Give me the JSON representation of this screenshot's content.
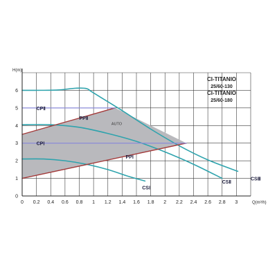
{
  "chart_data": {
    "type": "line",
    "title": "",
    "model_names": [
      "CI-TITANIO 25/60-130",
      "CI-TITANIO 25/60-180"
    ],
    "model_lines": [
      "CI-TITANIO",
      "25/60-130",
      "CI-TITANIO",
      "25/60-180"
    ],
    "ylabel": "H(m)",
    "xlabel": "Q(m³/h)",
    "xlim": [
      0,
      3.2
    ],
    "ylim": [
      0,
      7
    ],
    "xticks": [
      0,
      0.2,
      0.4,
      0.6,
      0.8,
      1,
      1.2,
      1.4,
      1.6,
      1.8,
      2,
      2.2,
      2.4,
      2.6,
      2.8,
      3
    ],
    "xtick_labels": [
      "0",
      "0.2",
      "0.4",
      "0.6",
      "0.8",
      "1",
      "1.2",
      "1.4",
      "1.6",
      "1.8",
      "2",
      "2.2",
      "2.4",
      "2.6",
      "2.8",
      "3"
    ],
    "yticks": [
      0,
      1,
      2,
      3,
      4,
      5,
      6
    ],
    "ytick_labels": [
      "0",
      "1",
      "2",
      "3",
      "4",
      "5",
      "6"
    ],
    "grid": true,
    "auto_region": {
      "label": "AUTO",
      "polygon": [
        [
          0,
          3.5
        ],
        [
          1.3,
          5.0
        ],
        [
          2.3,
          3.0
        ],
        [
          0,
          1.0
        ]
      ],
      "color": "#b9b9bd"
    },
    "series": [
      {
        "name": "CSⅢ",
        "kind": "speed-curve",
        "color": "#2ea3ad",
        "x": [
          0,
          0.2,
          0.5,
          0.75,
          0.9,
          1.0,
          1.4,
          1.8,
          2.2,
          2.6,
          3.02
        ],
        "y": [
          6.0,
          6.0,
          6.02,
          6.12,
          6.1,
          5.85,
          4.85,
          3.8,
          2.85,
          2.05,
          1.4
        ]
      },
      {
        "name": "CSⅡ",
        "kind": "speed-curve",
        "color": "#2ea3ad",
        "x": [
          0,
          0.4,
          0.8,
          1.2,
          1.6,
          2.0,
          2.4,
          2.8
        ],
        "y": [
          4.05,
          4.05,
          3.9,
          3.55,
          3.1,
          2.5,
          1.8,
          1.0
        ]
      },
      {
        "name": "CSⅠ",
        "kind": "speed-curve",
        "color": "#2ea3ad",
        "x": [
          0,
          0.3,
          0.6,
          0.9,
          1.2,
          1.5,
          1.72
        ],
        "y": [
          2.1,
          2.1,
          2.0,
          1.8,
          1.5,
          1.1,
          0.85
        ]
      },
      {
        "name": "PPⅡ",
        "kind": "proportional-pressure",
        "color": "#a33a3a",
        "x": [
          0,
          1.3
        ],
        "y": [
          3.5,
          5.0
        ]
      },
      {
        "name": "PPⅠ",
        "kind": "proportional-pressure",
        "color": "#a33a3a",
        "x": [
          0,
          2.3
        ],
        "y": [
          1.0,
          3.0
        ]
      },
      {
        "name": "CPⅡ",
        "kind": "constant-pressure",
        "color": "#8a8ad8",
        "x": [
          0,
          1.3
        ],
        "y": [
          5.0,
          5.0
        ]
      },
      {
        "name": "CPⅠ",
        "kind": "constant-pressure",
        "color": "#8a8ad8",
        "x": [
          0,
          2.3
        ],
        "y": [
          3.0,
          3.0
        ]
      }
    ],
    "annotations": [
      {
        "text": "CPⅡ",
        "x": 0.2,
        "y": 5.0
      },
      {
        "text": "PPⅡ",
        "x": 0.8,
        "y": 4.45
      },
      {
        "text": "AUTO",
        "x": 1.25,
        "y": 4.15
      },
      {
        "text": "CPⅠ",
        "x": 0.2,
        "y": 3.0
      },
      {
        "text": "PPⅠ",
        "x": 1.45,
        "y": 2.25
      },
      {
        "text": "CSⅠ",
        "x": 1.68,
        "y": 0.5
      },
      {
        "text": "CSⅡ",
        "x": 2.8,
        "y": 0.83
      },
      {
        "text": "CSⅢ",
        "x": 3.2,
        "y": 1.0
      }
    ]
  }
}
